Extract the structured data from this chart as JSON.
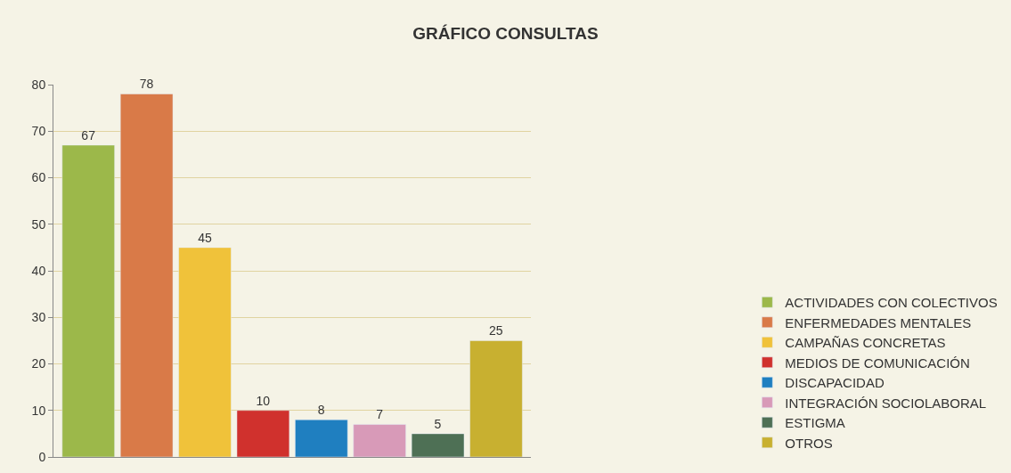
{
  "chart_data": {
    "type": "bar",
    "title": "GRÁFICO CONSULTAS",
    "categories": [
      null,
      null,
      null,
      null,
      null,
      null,
      null,
      null
    ],
    "series": [
      {
        "name": "ACTIVIDADES CON COLECTIVOS",
        "color": "#9cb84a",
        "values": [
          67,
          null,
          null,
          null,
          null,
          null,
          null,
          null
        ]
      },
      {
        "name": "ENFERMEDADES MENTALES",
        "color": "#d97a48",
        "values": [
          null,
          78,
          null,
          null,
          null,
          null,
          null,
          null
        ]
      },
      {
        "name": "CAMPAÑAS CONCRETAS",
        "color": "#f0c23a",
        "values": [
          null,
          null,
          45,
          null,
          null,
          null,
          null,
          null
        ]
      },
      {
        "name": "MEDIOS DE COMUNICACIÓN",
        "color": "#d0312d",
        "values": [
          null,
          null,
          null,
          10,
          null,
          null,
          null,
          null
        ]
      },
      {
        "name": "DISCAPACIDAD",
        "color": "#1f7fc0",
        "values": [
          null,
          null,
          null,
          null,
          8,
          null,
          null,
          null
        ]
      },
      {
        "name": "INTEGRACIÓN SOCIOLABORAL",
        "color": "#d89ab8",
        "values": [
          null,
          null,
          null,
          null,
          null,
          7,
          null,
          null
        ]
      },
      {
        "name": "ESTIGMA",
        "color": "#4e7055",
        "values": [
          null,
          null,
          null,
          null,
          null,
          null,
          5,
          null
        ]
      },
      {
        "name": "OTROS",
        "color": "#c8b030",
        "values": [
          null,
          null,
          null,
          null,
          null,
          null,
          null,
          25
        ]
      }
    ],
    "ylim": [
      0,
      80
    ],
    "yticks": [
      0,
      10,
      20,
      30,
      40,
      50,
      60,
      70,
      80
    ],
    "grid": "y",
    "legend": "right",
    "data_labels": true
  }
}
